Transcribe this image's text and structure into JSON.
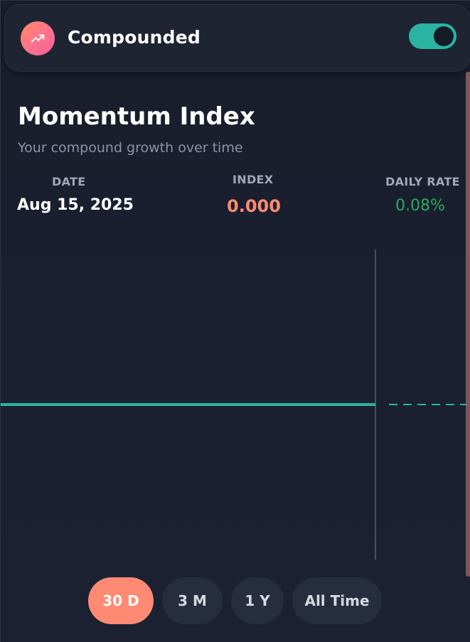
{
  "header": {
    "title": "Compounded",
    "logo_icon": "trending-up-icon",
    "toggle_on": true
  },
  "title": "Momentum Index",
  "subtitle": "Your compound growth over time",
  "stats": {
    "date_label": "DATE",
    "date_value": "Aug 15, 2025",
    "index_label": "INDEX",
    "index_value": "0.000",
    "rate_label": "DAILY RATE",
    "rate_value": "0.08%"
  },
  "ranges": [
    {
      "label": "30 D",
      "active": true
    },
    {
      "label": "3 M",
      "active": false
    },
    {
      "label": "1 Y",
      "active": false
    },
    {
      "label": "All Time",
      "active": false
    }
  ],
  "colors": {
    "accent": "#ff8a74",
    "teal": "#2bb3a2",
    "green": "#2ea860",
    "background": "#181e2b"
  }
}
